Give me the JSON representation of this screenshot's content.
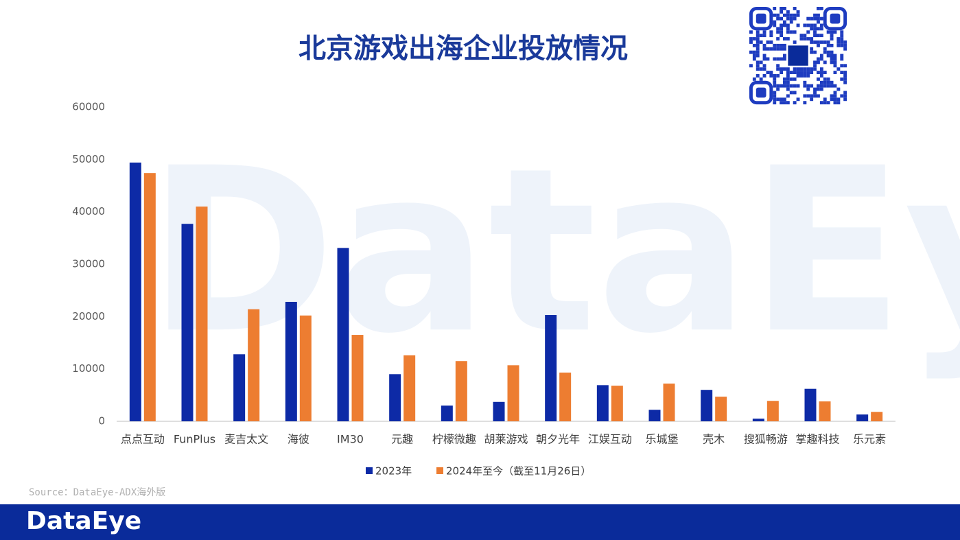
{
  "chart_data": {
    "type": "bar",
    "title": "北京游戏出海企业投放情况",
    "categories": [
      "点点互动",
      "FunPlus",
      "麦吉太文",
      "海彼",
      "IM30",
      "元趣",
      "柠檬微趣",
      "胡莱游戏",
      "朝夕光年",
      "江娱互动",
      "乐城堡",
      "壳木",
      "搜狐畅游",
      "掌趣科技",
      "乐元素"
    ],
    "series": [
      {
        "name": "2023年",
        "color": "#0d2aa6",
        "values": [
          49400,
          37700,
          12800,
          22800,
          33100,
          9000,
          3000,
          3700,
          20300,
          6900,
          2200,
          6000,
          500,
          6200,
          1300
        ]
      },
      {
        "name": "2024年至今（截至11月26日）",
        "color": "#ed7d31",
        "values": [
          47400,
          41000,
          21400,
          20200,
          16500,
          12600,
          11500,
          10700,
          9300,
          6800,
          7200,
          4700,
          3900,
          3800,
          1800
        ]
      }
    ],
    "ylim": [
      0,
      60000
    ],
    "yticks": [
      0,
      10000,
      20000,
      30000,
      40000,
      50000,
      60000
    ],
    "grid": false,
    "legend": "bottom",
    "source": "Source：DataEye-ADX海外版",
    "watermark": "DataEye",
    "brand": "DataEye"
  }
}
